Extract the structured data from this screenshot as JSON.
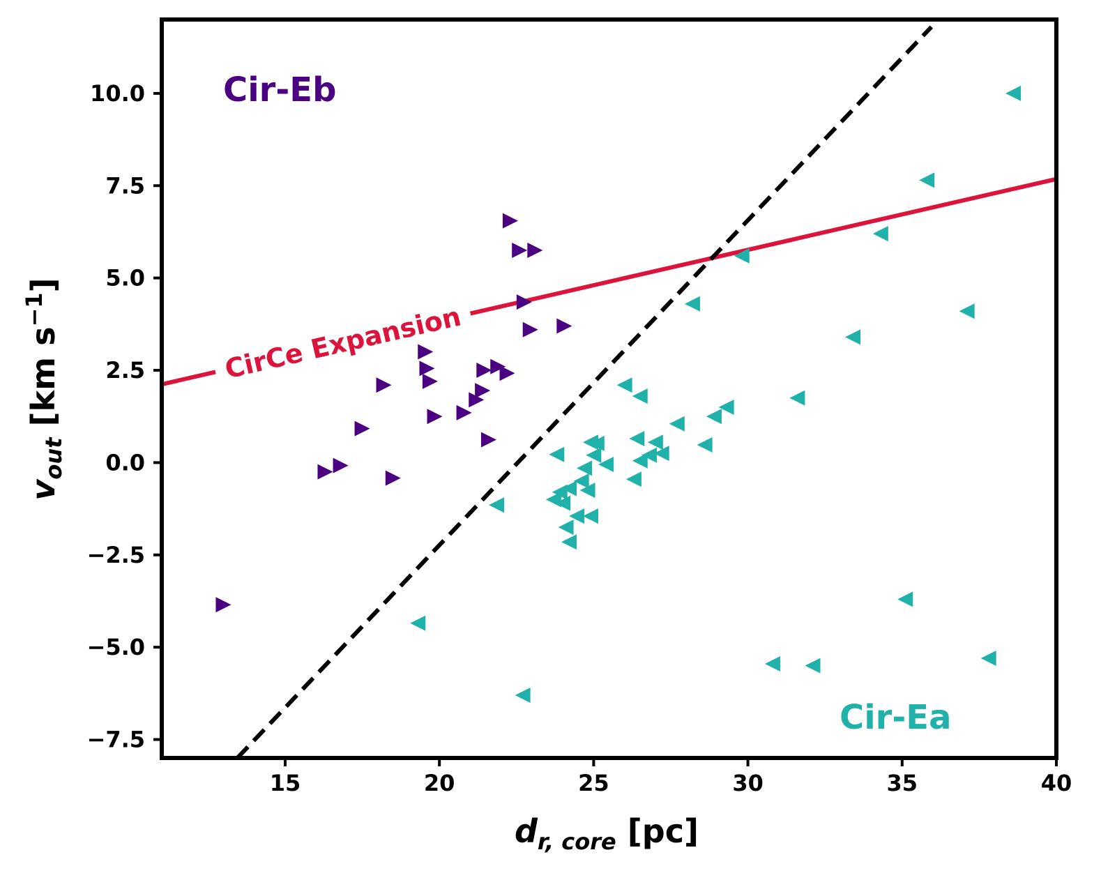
{
  "chart_data": {
    "type": "scatter",
    "title": "",
    "xlabel": {
      "main": "d",
      "sub": "r, core",
      "unit": " [pc]"
    },
    "ylabel": {
      "main": "v",
      "sub": "out",
      "unit": " [km s",
      "sup": "−1",
      "close": "]"
    },
    "xlim": [
      11,
      40
    ],
    "ylim": [
      -8,
      12
    ],
    "xticks": [
      15,
      20,
      25,
      30,
      35,
      40
    ],
    "yticks": [
      -7.5,
      -5.0,
      -2.5,
      0.0,
      2.5,
      5.0,
      7.5,
      10.0
    ],
    "xtick_labels": [
      "15",
      "20",
      "25",
      "30",
      "35",
      "40"
    ],
    "ytick_labels": [
      "−7.5",
      "−5.0",
      "−2.5",
      "0.0",
      "2.5",
      "5.0",
      "7.5",
      "10.0"
    ],
    "grid": false,
    "colors": {
      "cir_eb": "#4b0082",
      "cir_ea": "#20b2aa",
      "expansion": "#dc143c",
      "divider": "#000000"
    },
    "series": [
      {
        "name": "Cir-Eb",
        "marker": "triangle-right",
        "color": "#4b0082",
        "points": [
          [
            13.0,
            -3.85
          ],
          [
            16.3,
            -0.25
          ],
          [
            16.8,
            -0.08
          ],
          [
            17.5,
            0.92
          ],
          [
            18.2,
            2.1
          ],
          [
            18.5,
            -0.42
          ],
          [
            19.55,
            3.0
          ],
          [
            19.6,
            2.55
          ],
          [
            19.7,
            2.2
          ],
          [
            19.85,
            1.25
          ],
          [
            20.8,
            1.35
          ],
          [
            21.2,
            1.7
          ],
          [
            21.4,
            1.95
          ],
          [
            21.45,
            2.5
          ],
          [
            21.6,
            0.62
          ],
          [
            21.9,
            2.6
          ],
          [
            22.2,
            2.42
          ],
          [
            22.3,
            6.55
          ],
          [
            22.6,
            5.75
          ],
          [
            22.75,
            4.35
          ],
          [
            22.95,
            3.6
          ],
          [
            23.1,
            5.75
          ],
          [
            24.05,
            3.7
          ]
        ]
      },
      {
        "name": "Cir-Ea",
        "marker": "triangle-left",
        "color": "#20b2aa",
        "points": [
          [
            38.6,
            10.0
          ],
          [
            35.8,
            7.65
          ],
          [
            34.3,
            6.2
          ],
          [
            29.8,
            5.6
          ],
          [
            28.2,
            4.3
          ],
          [
            37.1,
            4.1
          ],
          [
            33.4,
            3.4
          ],
          [
            31.6,
            1.75
          ],
          [
            29.3,
            1.5
          ],
          [
            28.9,
            1.25
          ],
          [
            26.0,
            2.1
          ],
          [
            26.5,
            1.8
          ],
          [
            27.7,
            1.05
          ],
          [
            28.6,
            0.48
          ],
          [
            26.4,
            0.65
          ],
          [
            27.0,
            0.55
          ],
          [
            27.2,
            0.25
          ],
          [
            26.8,
            0.2
          ],
          [
            26.5,
            0.05
          ],
          [
            26.3,
            -0.45
          ],
          [
            25.1,
            0.52
          ],
          [
            24.9,
            0.55
          ],
          [
            25.0,
            0.2
          ],
          [
            25.4,
            -0.05
          ],
          [
            24.7,
            -0.15
          ],
          [
            23.8,
            0.22
          ],
          [
            24.6,
            -0.5
          ],
          [
            24.2,
            -0.7
          ],
          [
            24.8,
            -0.75
          ],
          [
            23.9,
            -0.8
          ],
          [
            23.7,
            -1.0
          ],
          [
            24.0,
            -1.1
          ],
          [
            21.85,
            -1.15
          ],
          [
            24.1,
            -1.75
          ],
          [
            24.45,
            -1.45
          ],
          [
            24.9,
            -1.45
          ],
          [
            24.2,
            -2.15
          ],
          [
            19.3,
            -4.35
          ],
          [
            22.7,
            -6.3
          ],
          [
            30.8,
            -5.45
          ],
          [
            32.1,
            -5.5
          ],
          [
            35.1,
            -3.7
          ],
          [
            37.8,
            -5.3
          ]
        ]
      }
    ],
    "lines": [
      {
        "name": "CirCe Expansion",
        "style": "solid",
        "color": "#dc143c",
        "label": "CirCe Expansion",
        "x": [
          11,
          40
        ],
        "y": [
          2.12,
          7.68
        ]
      },
      {
        "name": "Divider",
        "style": "dashed",
        "color": "#000000",
        "label": "",
        "x": [
          13.45,
          35.95
        ],
        "y": [
          -8.0,
          11.8
        ]
      }
    ],
    "annotations": [
      {
        "text": "Cir-Eb",
        "color": "#4b0082",
        "placement": "top-left"
      },
      {
        "text": "Cir-Ea",
        "color": "#20b2aa",
        "placement": "bottom-right"
      }
    ]
  }
}
